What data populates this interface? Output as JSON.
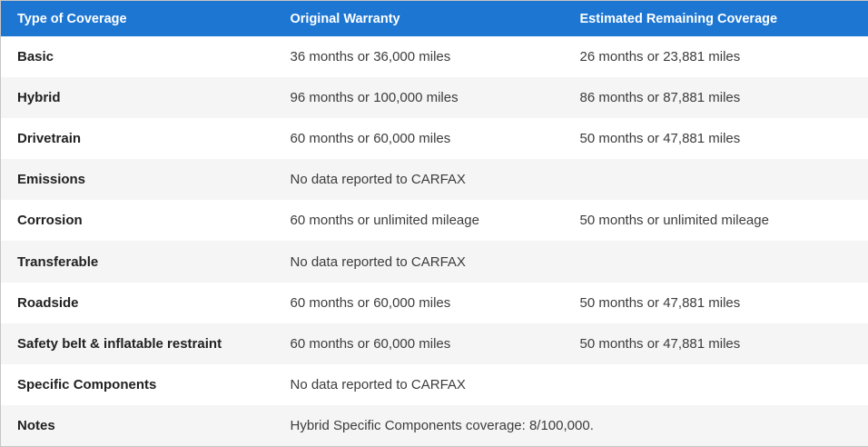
{
  "colors": {
    "header_bg": "#1c76d2",
    "header_text": "#ffffff",
    "row_alt_bg": "#f5f5f5",
    "border": "#c6c6c6"
  },
  "table": {
    "columns": [
      "Type of Coverage",
      "Original Warranty",
      "Estimated Remaining Coverage"
    ],
    "rows": [
      {
        "type": "Basic",
        "original": "36 months or 36,000 miles",
        "remaining": "26 months or 23,881 miles"
      },
      {
        "type": "Hybrid",
        "original": "96 months or 100,000 miles",
        "remaining": "86 months or 87,881 miles"
      },
      {
        "type": "Drivetrain",
        "original": "60 months or 60,000 miles",
        "remaining": "50 months or 47,881 miles"
      },
      {
        "type": "Emissions",
        "original": "No data reported to CARFAX",
        "remaining": ""
      },
      {
        "type": "Corrosion",
        "original": "60 months or unlimited mileage",
        "remaining": "50 months or unlimited mileage"
      },
      {
        "type": "Transferable",
        "original": "No data reported to CARFAX",
        "remaining": ""
      },
      {
        "type": "Roadside",
        "original": "60 months or 60,000 miles",
        "remaining": "50 months or 47,881 miles"
      },
      {
        "type": "Safety belt & inflatable restraint",
        "original": "60 months or 60,000 miles",
        "remaining": "50 months or 47,881 miles"
      },
      {
        "type": "Specific Components",
        "original": "No data reported to CARFAX",
        "remaining": ""
      },
      {
        "type": "Notes",
        "original": "Hybrid Specific Components coverage: 8/100,000.",
        "remaining": ""
      }
    ]
  }
}
